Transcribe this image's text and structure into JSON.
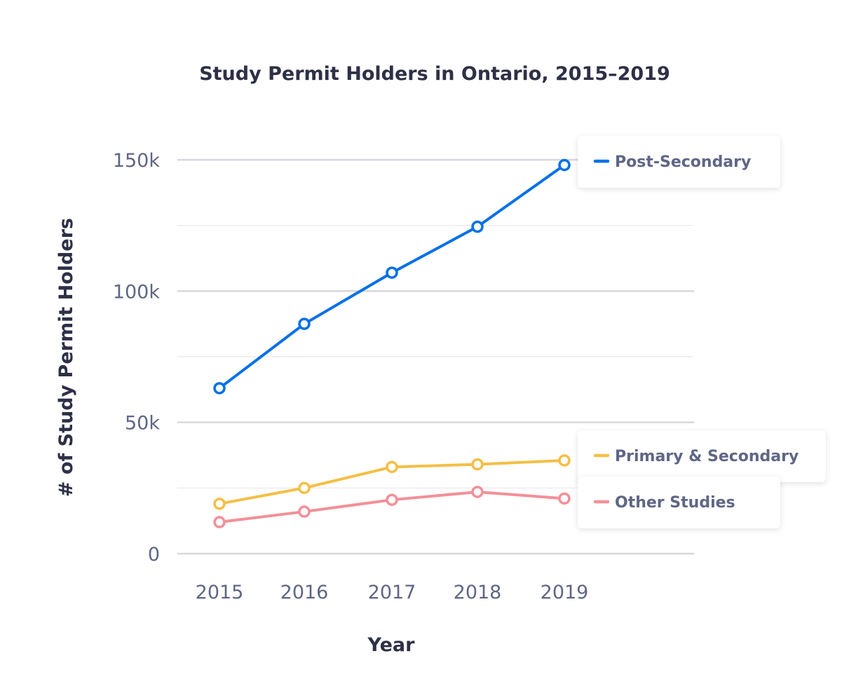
{
  "chart_data": {
    "type": "line",
    "title": "Study Permit Holders in Ontario, 2015–2019",
    "xlabel": "Year",
    "ylabel": "# of Study Permit Holders",
    "categories": [
      "2015",
      "2016",
      "2017",
      "2018",
      "2019"
    ],
    "ylim": [
      0,
      150000
    ],
    "yticks": [
      0,
      50000,
      100000,
      150000
    ],
    "ytick_labels": [
      "0",
      "50k",
      "100k",
      "150k"
    ],
    "grid": true,
    "legend_placement": "labels at series ends (right)",
    "series": [
      {
        "name": "Post-Secondary",
        "color": "#0070e8",
        "values": [
          63000,
          87500,
          107000,
          124500,
          148000
        ]
      },
      {
        "name": "Primary & Secondary",
        "color": "#f5bf45",
        "values": [
          19000,
          25000,
          33000,
          34000,
          35500
        ]
      },
      {
        "name": "Other Studies",
        "color": "#f48f98",
        "values": [
          12000,
          16000,
          20500,
          23500,
          21000
        ]
      }
    ]
  }
}
